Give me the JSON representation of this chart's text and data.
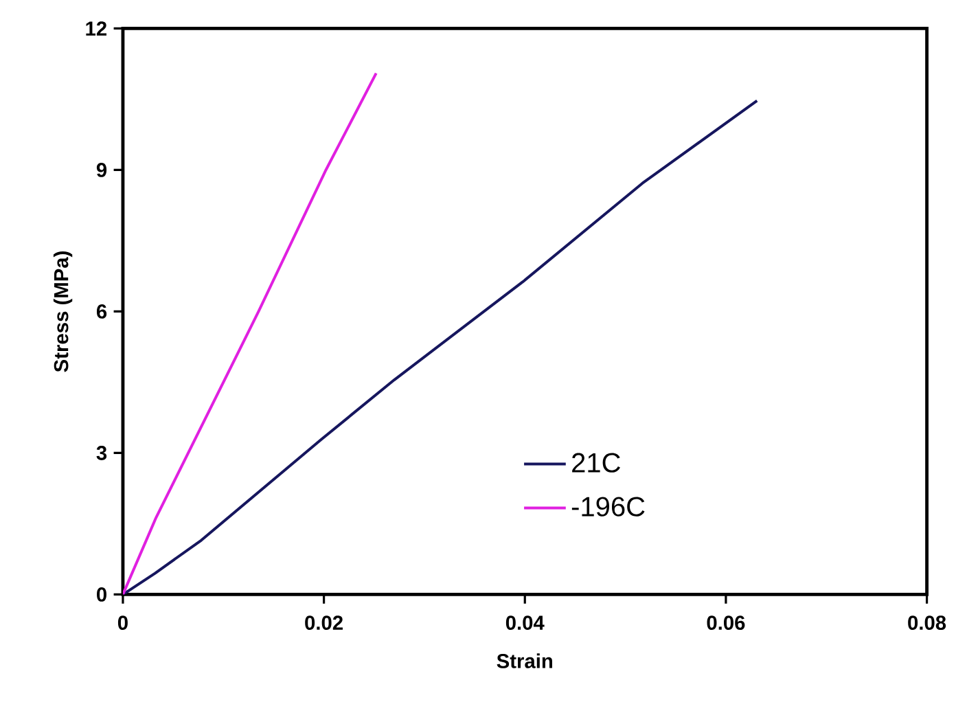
{
  "chart_data": {
    "type": "line",
    "xlabel": "Strain",
    "ylabel": "Stress (MPa)",
    "xlim": [
      0,
      0.08
    ],
    "xticks": [
      0,
      0.02,
      0.04,
      0.06,
      0.08
    ],
    "ylim": [
      0,
      12
    ],
    "yticks": [
      0,
      3,
      6,
      9,
      12
    ],
    "grid": false,
    "legend": "bottom right",
    "marker": "none",
    "line_style": "solid",
    "series": [
      {
        "name": "21C",
        "color": "#16165e",
        "x": [
          0,
          0.0032,
          0.0078,
          0.0197,
          0.027,
          0.0398,
          0.0517,
          0.0631
        ],
        "values": [
          0,
          0.45,
          1.15,
          3.28,
          4.55,
          6.63,
          8.72,
          10.47
        ]
      },
      {
        "name": "-196C",
        "color": "#e020e0",
        "x": [
          0,
          0.0033,
          0.0135,
          0.0202,
          0.0252
        ],
        "values": [
          0,
          1.63,
          6.0,
          9.0,
          11.05
        ]
      }
    ]
  }
}
